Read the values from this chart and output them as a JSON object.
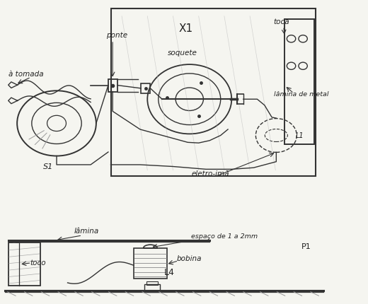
{
  "bg_color": "#f5f5f0",
  "line_color": "#333333",
  "sketch_color": "#444444",
  "title": "",
  "figsize": [
    5.2,
    4.3
  ],
  "dpi": 100,
  "annotations": {
    "a_tomada": [
      0.02,
      0.745,
      "à tomada"
    ],
    "ponte": [
      0.288,
      0.875,
      "ponte"
    ],
    "X1": [
      0.485,
      0.89,
      "X1"
    ],
    "soquete": [
      0.455,
      0.815,
      "soquete"
    ],
    "toca": [
      0.745,
      0.92,
      "toca"
    ],
    "lamina_de_metal": [
      0.745,
      0.68,
      "lâmina de metal"
    ],
    "S1": [
      0.115,
      0.44,
      "S1"
    ],
    "eletroime": [
      0.52,
      0.415,
      "eletro-imã"
    ],
    "L1_top": [
      0.805,
      0.555,
      "L1"
    ],
    "lamina_bot": [
      0.2,
      0.225,
      "lâmina"
    ],
    "espaco": [
      0.52,
      0.21,
      "espaço de 1 a 2mm"
    ],
    "bobina": [
      0.48,
      0.135,
      "bobina"
    ],
    "L4": [
      0.445,
      0.085,
      "L4"
    ],
    "toco": [
      0.08,
      0.12,
      "toco"
    ],
    "P1": [
      0.82,
      0.175,
      "P1"
    ]
  }
}
